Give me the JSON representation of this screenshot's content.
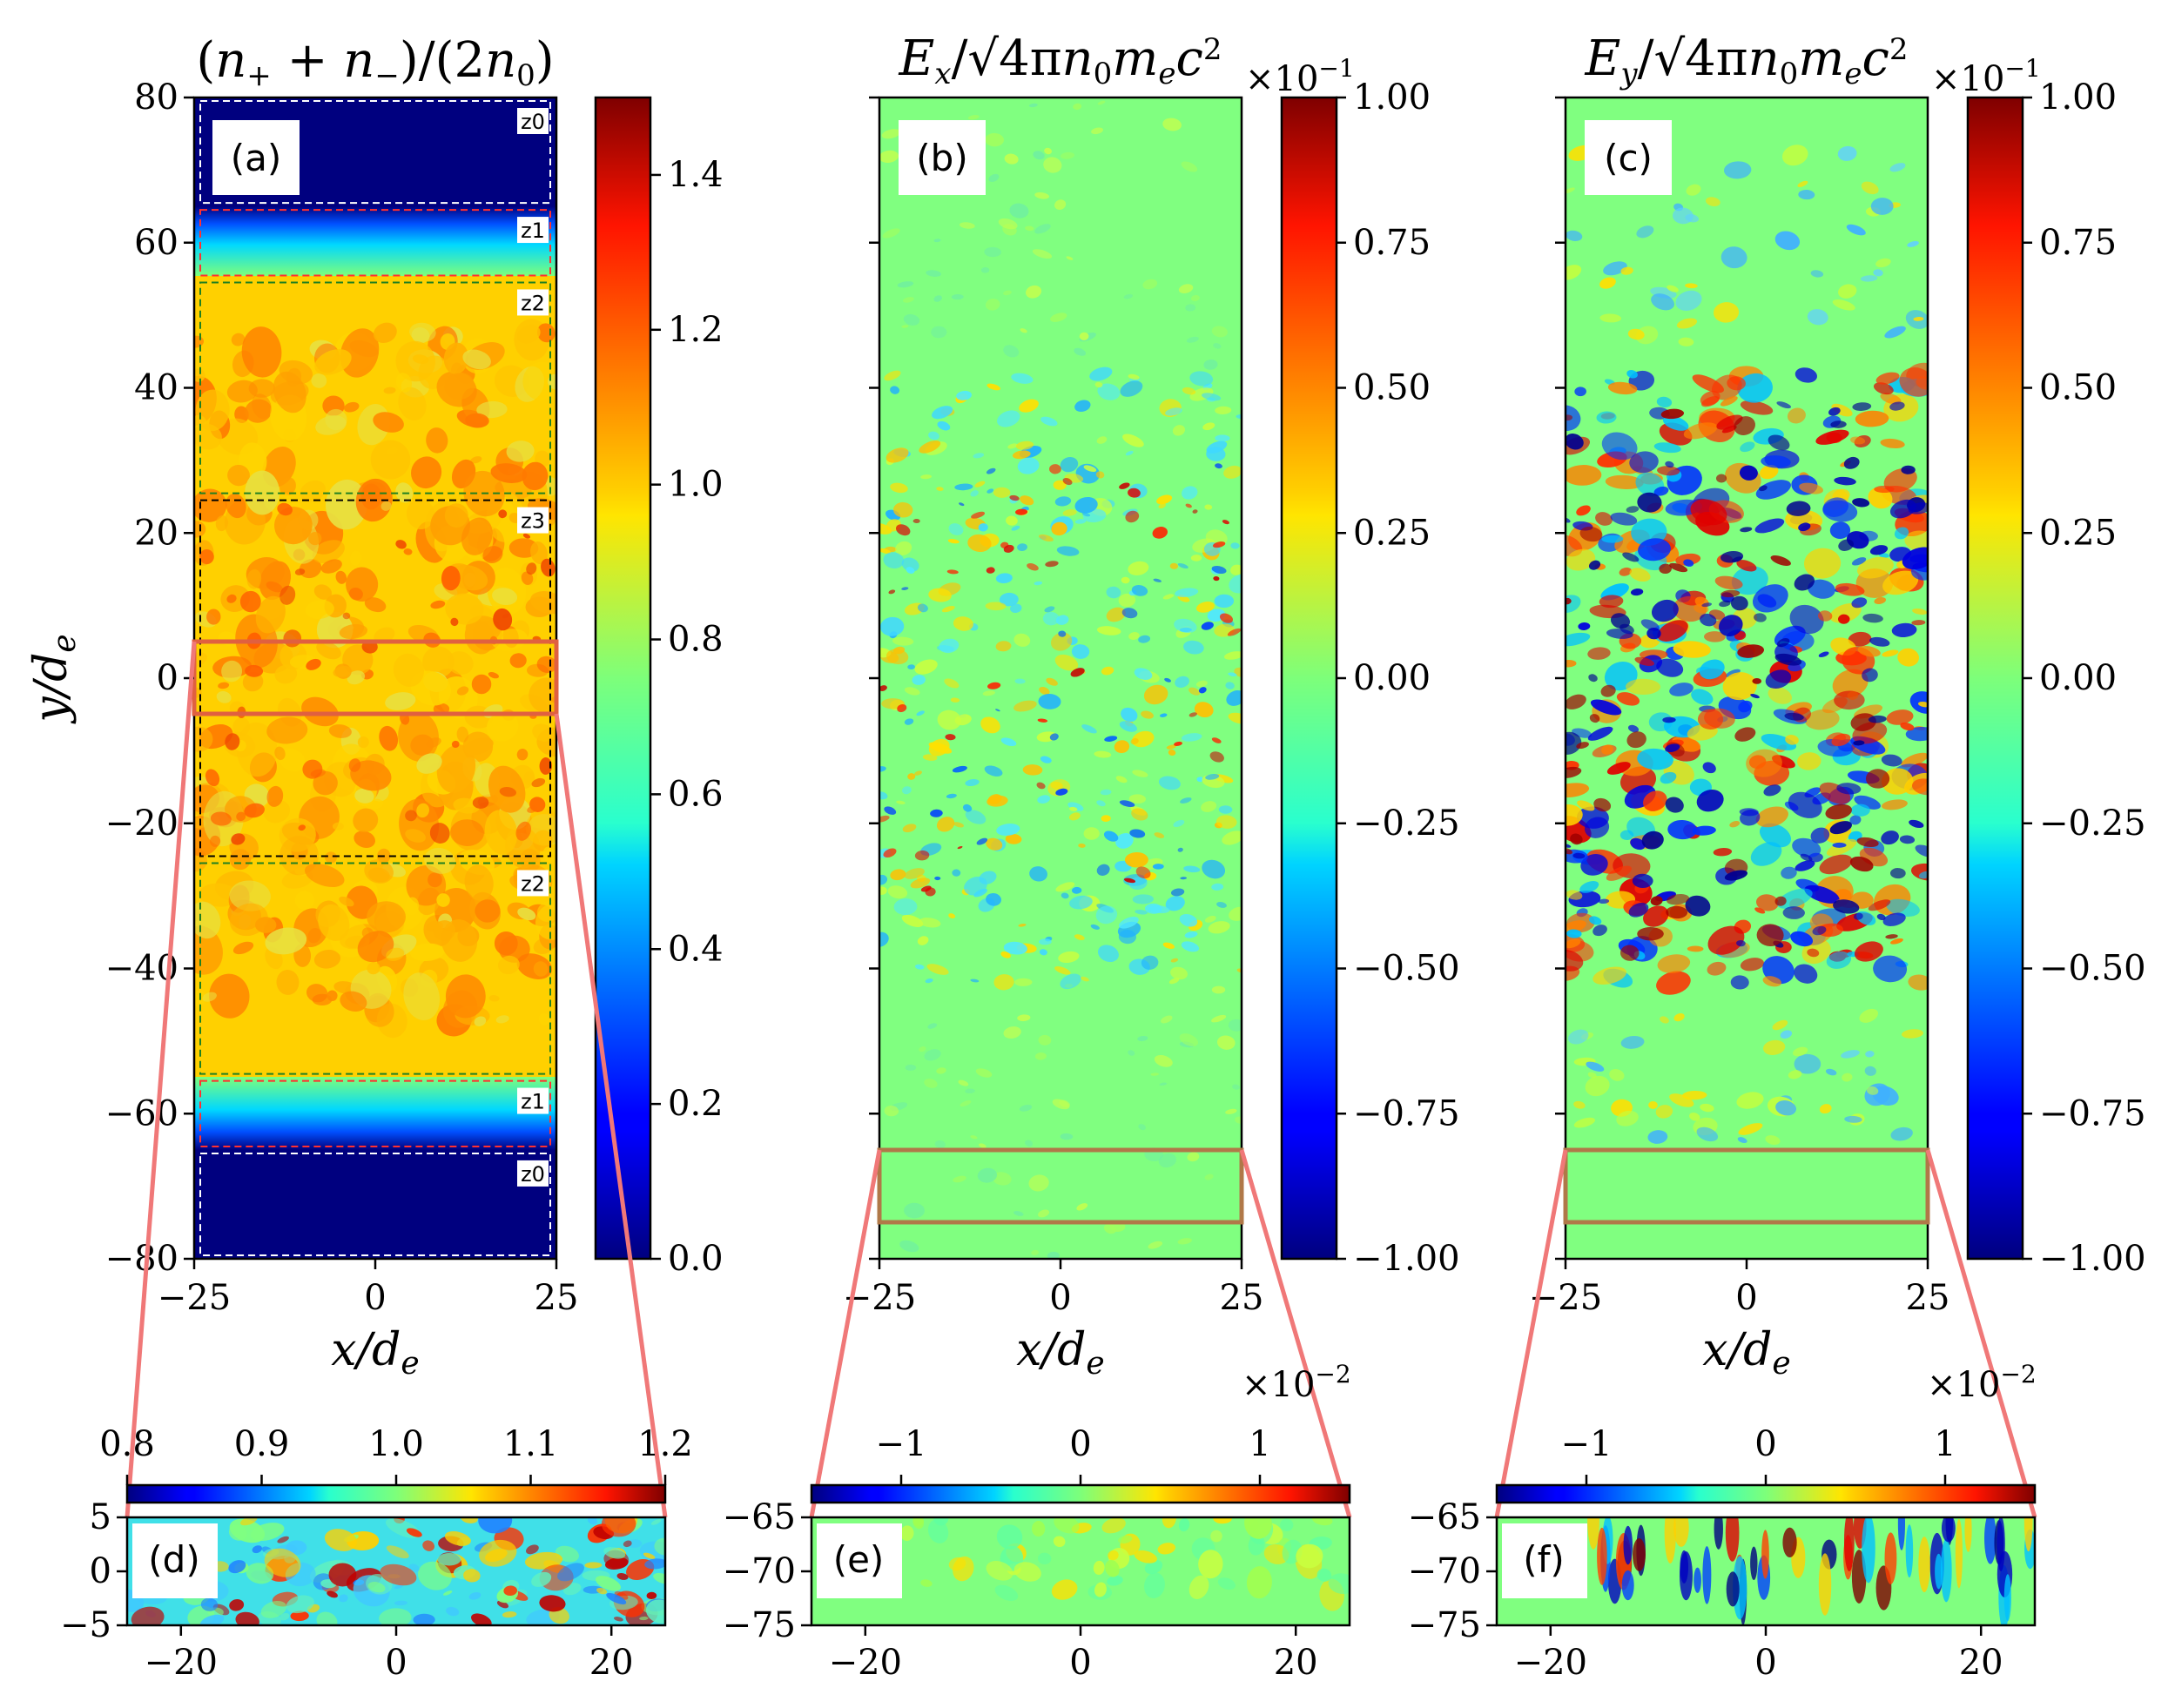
{
  "chart_data": [
    {
      "type": "heatmap",
      "panel": "(a)",
      "title": "(n+ + n−)/(2n0)",
      "xlabel": "x/de",
      "ylabel": "y/de",
      "xlim": [
        -25,
        25
      ],
      "ylim": [
        -80,
        80
      ],
      "xticks": [
        "−25",
        "0",
        "25"
      ],
      "yticks": [
        "80",
        "60",
        "40",
        "20",
        "0",
        "−20",
        "−40",
        "−60",
        "−80"
      ],
      "colorbar": {
        "ticks": [
          "0.0",
          "0.2",
          "0.4",
          "0.6",
          "0.8",
          "1.0",
          "1.2",
          "1.4"
        ],
        "range": [
          0,
          1.5
        ]
      },
      "zones": [
        {
          "label": "z0",
          "y": [
            65,
            80
          ],
          "color": "#ffffff"
        },
        {
          "label": "z1",
          "y": [
            55,
            65
          ],
          "color": "#ff3030"
        },
        {
          "label": "z2",
          "y": [
            25,
            55
          ],
          "color": "#208020"
        },
        {
          "label": "z3",
          "y": [
            -25,
            25
          ],
          "color": "#000000"
        },
        {
          "label": "z2",
          "y": [
            -55,
            -25
          ],
          "color": "#208020"
        },
        {
          "label": "z1",
          "y": [
            -65,
            -55
          ],
          "color": "#ff3030"
        },
        {
          "label": "z0",
          "y": [
            -80,
            -65
          ],
          "color": "#ffffff"
        }
      ],
      "zoom_box": {
        "x": [
          -25,
          25
        ],
        "y": [
          -5,
          5
        ]
      }
    },
    {
      "type": "heatmap",
      "panel": "(b)",
      "title": "Ex/√4πn0mec²",
      "multiplier": "×10−1",
      "xlabel": "x/de",
      "xlim": [
        -25,
        25
      ],
      "ylim": [
        -80,
        80
      ],
      "xticks": [
        "−25",
        "0",
        "25"
      ],
      "colorbar": {
        "ticks": [
          "1.00",
          "0.75",
          "0.50",
          "0.25",
          "0.00",
          "−0.25",
          "−0.50",
          "−0.75",
          "−1.00"
        ],
        "range": [
          -1,
          1
        ]
      },
      "zoom_box": {
        "x": [
          -25,
          25
        ],
        "y": [
          -75,
          -65
        ]
      }
    },
    {
      "type": "heatmap",
      "panel": "(c)",
      "title": "Ey/√4πn0mec²",
      "multiplier": "×10−1",
      "xlabel": "x/de",
      "xlim": [
        -25,
        25
      ],
      "ylim": [
        -80,
        80
      ],
      "xticks": [
        "−25",
        "0",
        "25"
      ],
      "colorbar": {
        "ticks": [
          "1.00",
          "0.75",
          "0.50",
          "0.25",
          "0.00",
          "−0.25",
          "−0.50",
          "−0.75",
          "−1.00"
        ],
        "range": [
          -1,
          1
        ]
      },
      "zoom_box": {
        "x": [
          -25,
          25
        ],
        "y": [
          -75,
          -65
        ]
      }
    },
    {
      "type": "heatmap",
      "panel": "(d)",
      "xlim": [
        -25,
        25
      ],
      "ylim": [
        -5,
        5
      ],
      "xticks": [
        "−20",
        "0",
        "20"
      ],
      "yticks": [
        "5",
        "0",
        "−5"
      ],
      "colorbar": {
        "ticks": [
          "0.8",
          "0.9",
          "1.0",
          "1.1",
          "1.2"
        ],
        "range": [
          0.8,
          1.2
        ]
      }
    },
    {
      "type": "heatmap",
      "panel": "(e)",
      "xlim": [
        -25,
        25
      ],
      "ylim": [
        -75,
        -65
      ],
      "xticks": [
        "−20",
        "0",
        "20"
      ],
      "yticks": [
        "−65",
        "−70",
        "−75"
      ],
      "colorbar": {
        "ticks": [
          "−1",
          "0",
          "1"
        ],
        "multiplier": "×10−2",
        "range": [
          -1.5,
          1.5
        ]
      }
    },
    {
      "type": "heatmap",
      "panel": "(f)",
      "xlim": [
        -25,
        25
      ],
      "ylim": [
        -75,
        -65
      ],
      "xticks": [
        "−20",
        "0",
        "20"
      ],
      "yticks": [
        "−65",
        "−70",
        "−75"
      ],
      "colorbar": {
        "ticks": [
          "−1",
          "0",
          "1"
        ],
        "multiplier": "×10−2",
        "range": [
          -1.5,
          1.5
        ]
      }
    }
  ],
  "colors": {
    "zoom_line": "#f07878",
    "zoom_box_a": "#e06040",
    "zoom_box_bc": "#b07848",
    "field_bg": "#80ff80",
    "density_bg": "#ffd000",
    "vacuum": "#00007f"
  }
}
